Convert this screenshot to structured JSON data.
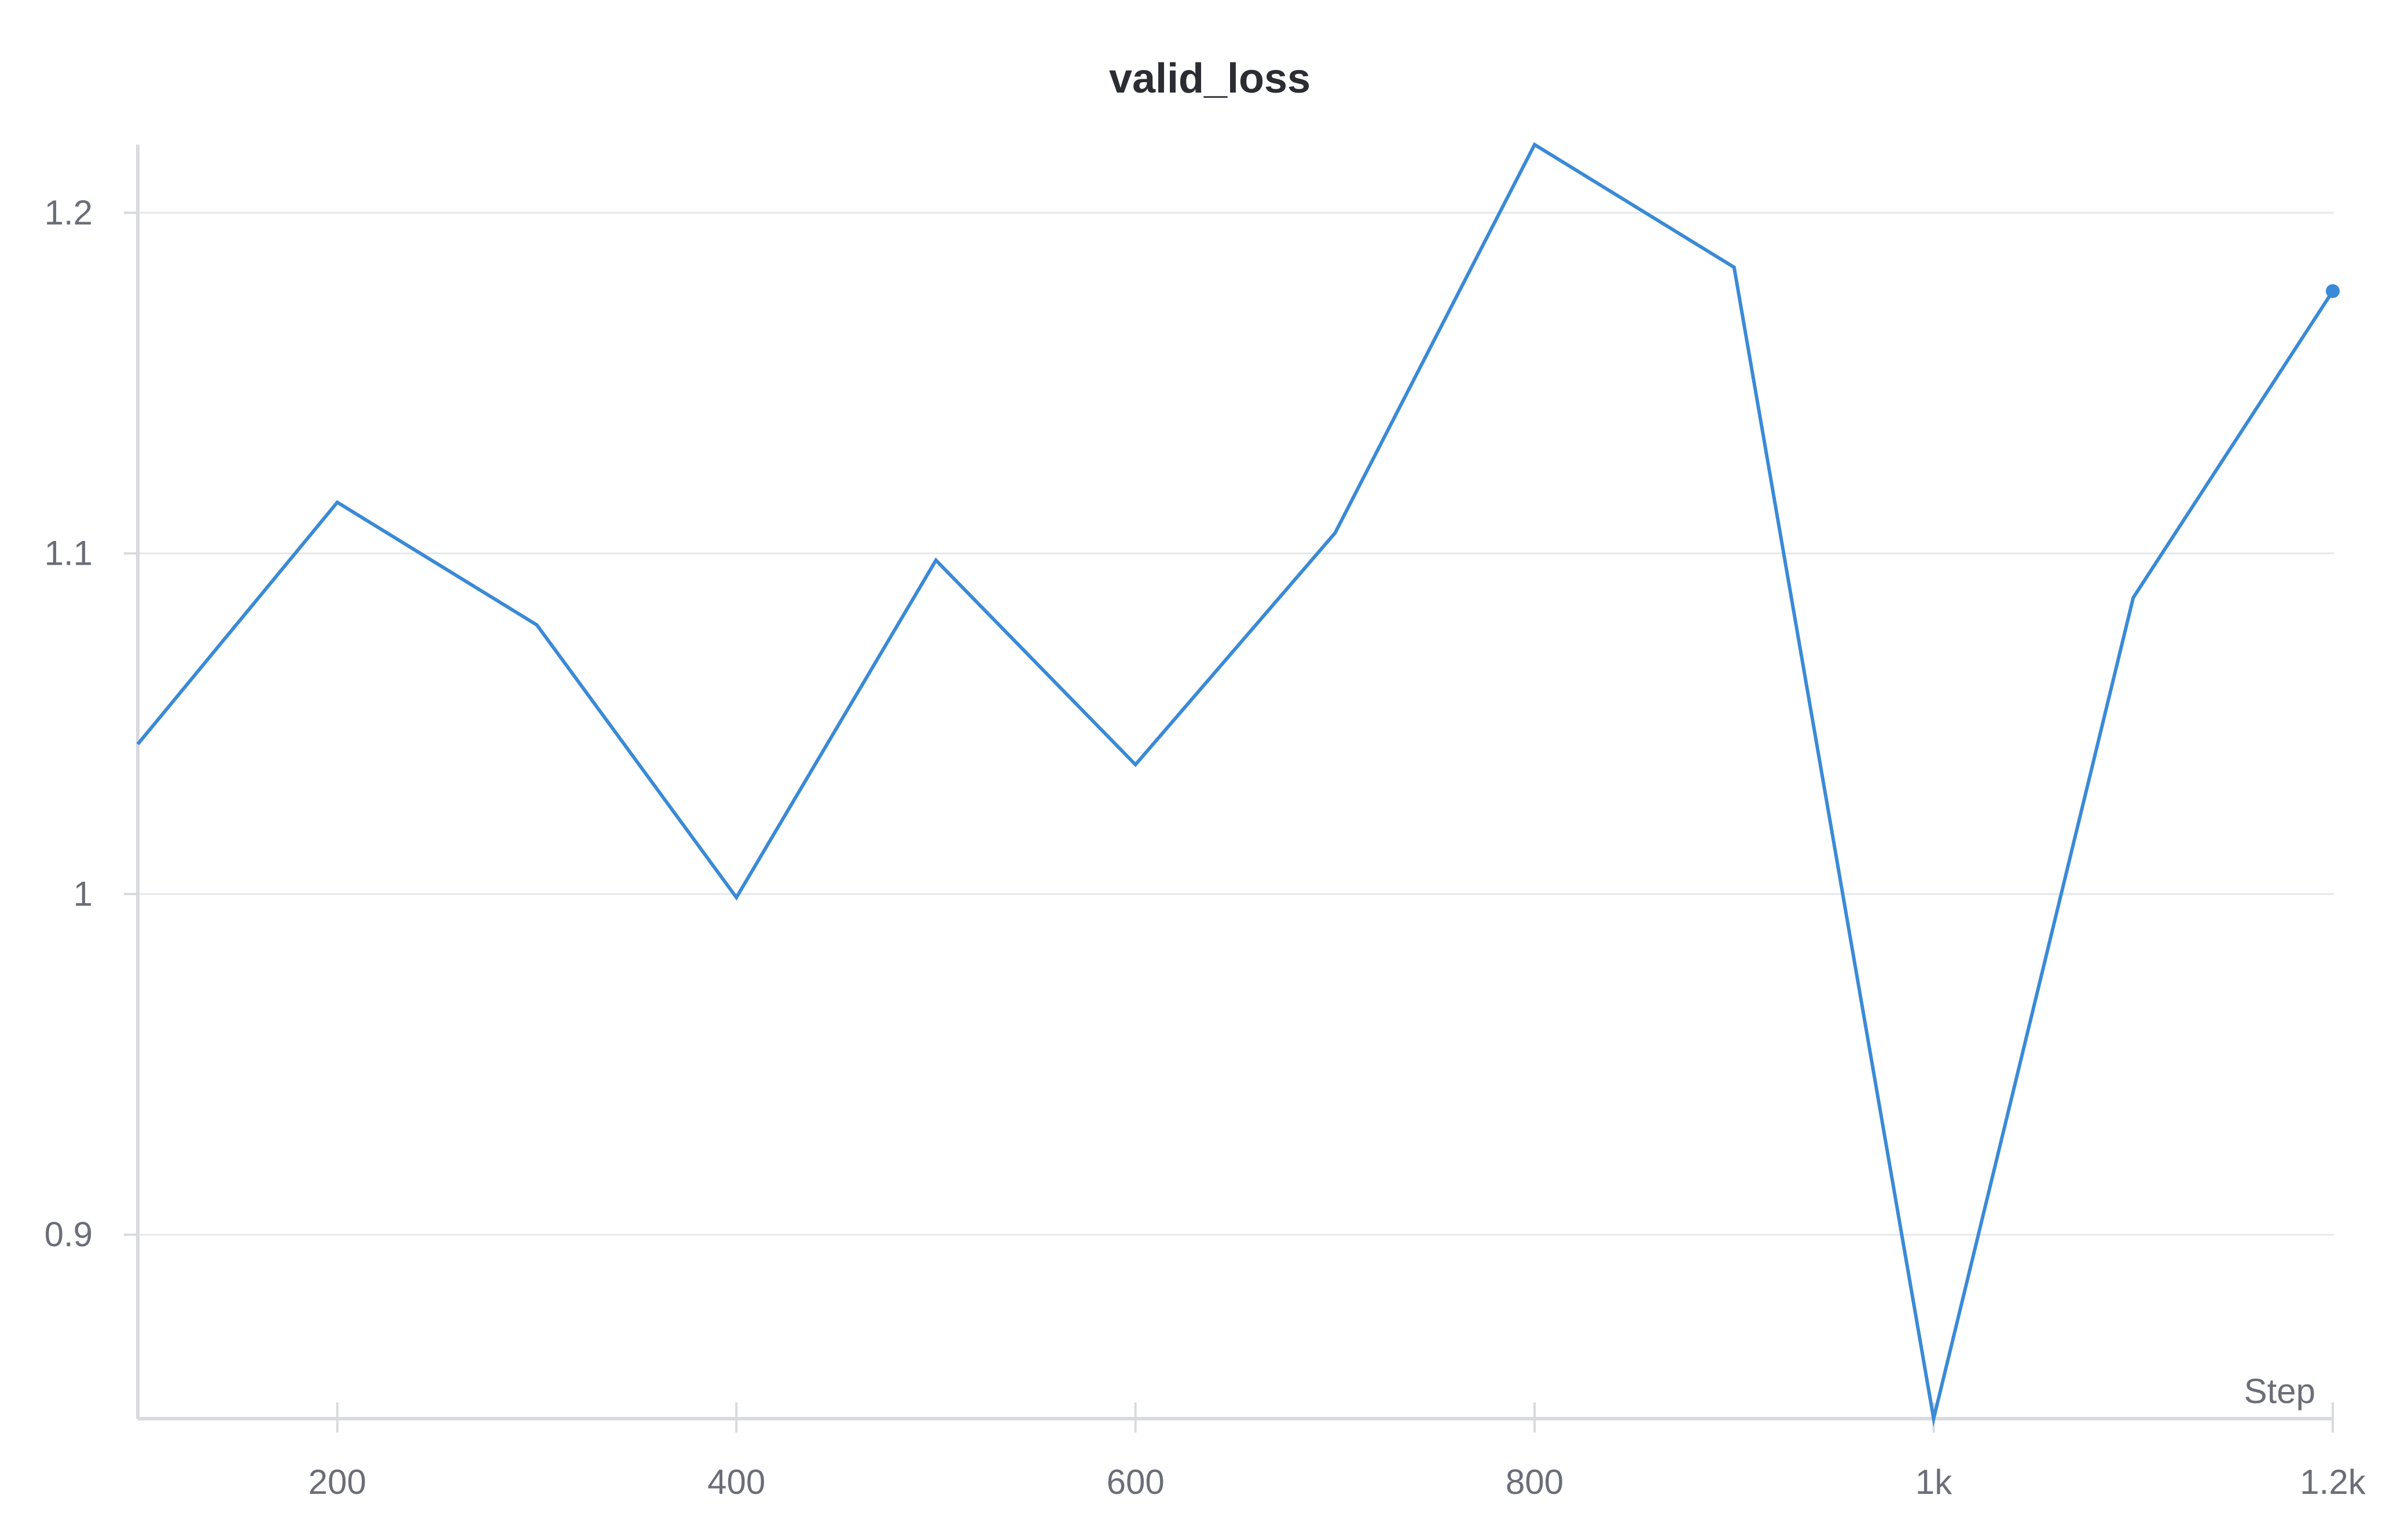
{
  "chart_data": {
    "type": "line",
    "title": "valid_loss",
    "xlabel": "Step",
    "ylabel": "",
    "xlim": [
      100,
      1200
    ],
    "ylim": [
      0.846,
      1.22
    ],
    "grid": true,
    "legend": "none",
    "x_ticks": [
      {
        "value": 200,
        "label": "200"
      },
      {
        "value": 400,
        "label": "400"
      },
      {
        "value": 600,
        "label": "600"
      },
      {
        "value": 800,
        "label": "800"
      },
      {
        "value": 1000,
        "label": "1k"
      },
      {
        "value": 1200,
        "label": "1.2k"
      }
    ],
    "y_ticks": [
      {
        "value": 0.9,
        "label": "0.9"
      },
      {
        "value": 1.0,
        "label": "1"
      },
      {
        "value": 1.1,
        "label": "1.1"
      },
      {
        "value": 1.2,
        "label": "1.2"
      }
    ],
    "series": [
      {
        "name": "valid_loss",
        "color": "#3a8ad6",
        "x": [
          100,
          200,
          300,
          400,
          500,
          600,
          700,
          800,
          900,
          1000,
          1100,
          1200
        ],
        "values": [
          1.044,
          1.115,
          1.079,
          0.999,
          1.098,
          1.038,
          1.106,
          1.22,
          1.184,
          0.846,
          1.087,
          1.177
        ]
      }
    ]
  }
}
